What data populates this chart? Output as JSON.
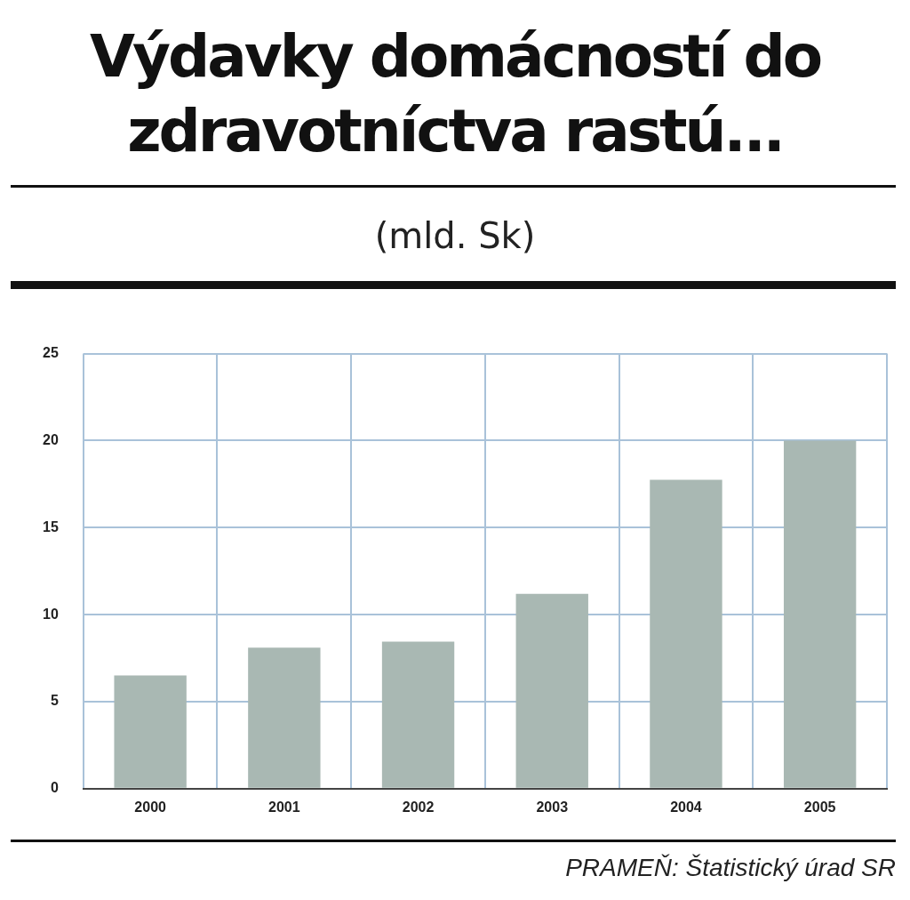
{
  "chart_data": {
    "type": "bar",
    "title": "Výdavky domácností do zdravotníctva rastú...",
    "subtitle": "(mld. Sk)",
    "categories": [
      "2000",
      "2001",
      "2002",
      "2003",
      "2004",
      "2005"
    ],
    "values": [
      6.5,
      8.1,
      8.45,
      11.2,
      17.75,
      20.0
    ],
    "color": "#a9b8b3",
    "ylim": [
      0,
      25
    ],
    "yticks": [
      0,
      5,
      10,
      15,
      20,
      25
    ],
    "grid": true,
    "annotations": [
      "PRAMEŇ: Štatistický úrad SR"
    ]
  }
}
